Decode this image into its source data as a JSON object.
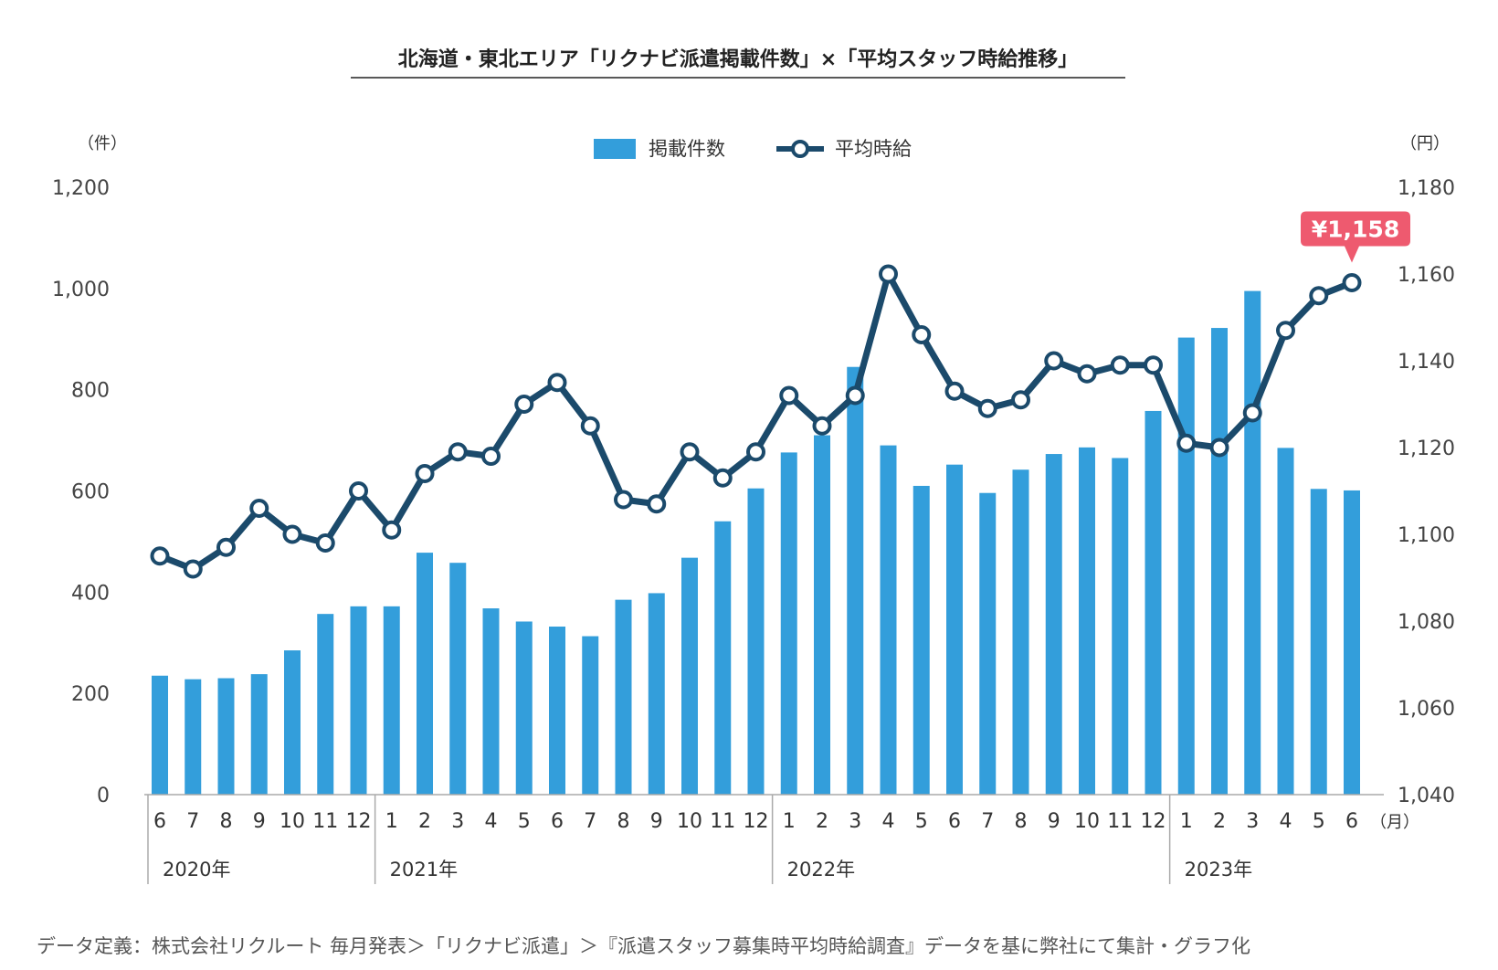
{
  "title": "北海道・東北エリア「リクナビ派遣掲載件数」×「平均スタッフ時給推移」",
  "units": {
    "left": "（件）",
    "right": "（円）",
    "month": "（月）"
  },
  "legend": {
    "bars": "掲載件数",
    "line": "平均時給"
  },
  "source": "データ定義：株式会社リクルート 毎月発表＞「リクナビ派遣」＞『派遣スタッフ募集時平均時給調査』データを基に弊社にて集計・グラフ化",
  "callout": "¥1,158",
  "colors": {
    "bar": "#339edb",
    "line": "#1b4a6b",
    "callout": "#ee5a6f",
    "axis": "#aaaaaa"
  },
  "chart_data": {
    "type": "bar+line",
    "x_months": [
      "6",
      "7",
      "8",
      "9",
      "10",
      "11",
      "12",
      "1",
      "2",
      "3",
      "4",
      "5",
      "6",
      "7",
      "8",
      "9",
      "10",
      "11",
      "12",
      "1",
      "2",
      "3",
      "4",
      "5",
      "6",
      "7",
      "8",
      "9",
      "10",
      "11",
      "12",
      "1",
      "2",
      "3",
      "4",
      "5",
      "6"
    ],
    "year_groups": [
      {
        "label": "2020年",
        "start": 0,
        "count": 7
      },
      {
        "label": "2021年",
        "start": 7,
        "count": 12
      },
      {
        "label": "2022年",
        "start": 19,
        "count": 12
      },
      {
        "label": "2023年",
        "start": 31,
        "count": 6
      }
    ],
    "series": [
      {
        "name": "掲載件数",
        "type": "bar",
        "axis": "left",
        "values": [
          235,
          228,
          230,
          238,
          285,
          357,
          372,
          372,
          478,
          458,
          368,
          342,
          332,
          313,
          385,
          398,
          468,
          540,
          605,
          676,
          710,
          845,
          690,
          610,
          652,
          596,
          642,
          673,
          686,
          665,
          758,
          903,
          922,
          995,
          685,
          604,
          601
        ]
      },
      {
        "name": "平均時給",
        "type": "line",
        "axis": "right",
        "values": [
          1095,
          1092,
          1097,
          1106,
          1100,
          1098,
          1110,
          1101,
          1114,
          1119,
          1118,
          1130,
          1135,
          1125,
          1108,
          1107,
          1119,
          1113,
          1119,
          1132,
          1125,
          1132,
          1160,
          1146,
          1133,
          1129,
          1131,
          1140,
          1137,
          1139,
          1139,
          1121,
          1120,
          1128,
          1147,
          1155,
          1158
        ]
      }
    ],
    "y_left": {
      "min": 0,
      "max": 1200,
      "ticks": [
        "0",
        "200",
        "400",
        "600",
        "800",
        "1,000",
        "1,200"
      ]
    },
    "y_right": {
      "min": 1040,
      "max": 1180,
      "ticks": [
        "1,040",
        "1,060",
        "1,080",
        "1,100",
        "1,120",
        "1,140",
        "1,160",
        "1,180"
      ]
    }
  }
}
